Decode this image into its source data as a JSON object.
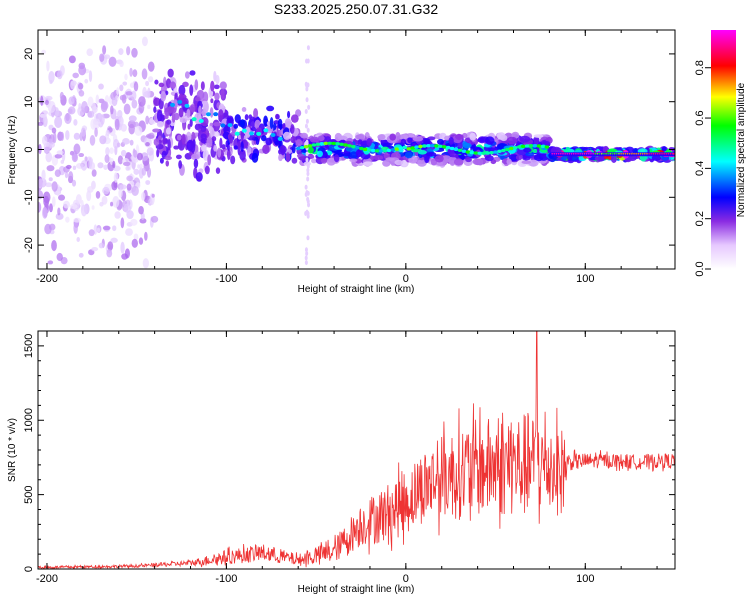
{
  "chart_data": [
    {
      "type": "heatmap",
      "title": "S233.2025.250.07.31.G32",
      "xlabel": "Height of straight line (km)",
      "ylabel": "Frequency (Hz)",
      "xlim": [
        -205,
        150
      ],
      "ylim": [
        -25,
        25
      ],
      "xticks": [
        -200,
        -100,
        0,
        100
      ],
      "yticks": [
        -20,
        -10,
        0,
        10,
        20
      ],
      "colorbar": {
        "label": "Normalized spectral amplitude",
        "range": [
          0.0,
          0.95
        ],
        "ticks": [
          0.0,
          0.2,
          0.4,
          0.6,
          0.8
        ],
        "colors": [
          "#ffffff",
          "#e6c8ff",
          "#8a2be2",
          "#4b00ff",
          "#0000ff",
          "#00ffff",
          "#00ff00",
          "#ffff00",
          "#ff0000",
          "#ff00ff"
        ]
      },
      "ridge": {
        "description_segments": [
          {
            "x": [
              -205,
              -140
            ],
            "freq_center": 0,
            "spread": 25,
            "amplitude": 0.12
          },
          {
            "x": [
              -140,
              -100
            ],
            "freq_center": 5,
            "spread": 12,
            "amplitude": 0.22
          },
          {
            "x": [
              -100,
              -60
            ],
            "freq_center": 3,
            "spread": 6,
            "amplitude": 0.3
          },
          {
            "x": [
              -60,
              80
            ],
            "freq_center": 0,
            "spread": 3,
            "amplitude": 0.45
          },
          {
            "x": [
              80,
              150
            ],
            "freq_center": -1,
            "spread": 1,
            "amplitude": 0.9
          }
        ]
      }
    },
    {
      "type": "line",
      "xlabel": "Height of straight line (km)",
      "ylabel": "SNR (10 * v/v)",
      "xlim": [
        -205,
        150
      ],
      "ylim": [
        0,
        1600
      ],
      "xticks": [
        -200,
        -100,
        0,
        100
      ],
      "yticks": [
        0,
        500,
        1000,
        1500
      ],
      "series": [
        {
          "name": "SNR",
          "color": "#ee3333",
          "envelope_x": [
            -205,
            -150,
            -120,
            -100,
            -80,
            -60,
            -40,
            -25,
            -10,
            0,
            10,
            20,
            30,
            40,
            50,
            60,
            70,
            80,
            88,
            90,
            110,
            130,
            150
          ],
          "envelope_mean": [
            10,
            20,
            40,
            80,
            110,
            60,
            120,
            300,
            380,
            450,
            560,
            620,
            650,
            680,
            690,
            700,
            700,
            690,
            650,
            720,
            730,
            720,
            730
          ],
          "envelope_noise": [
            8,
            10,
            20,
            50,
            60,
            40,
            80,
            150,
            200,
            220,
            250,
            280,
            320,
            330,
            340,
            350,
            360,
            320,
            300,
            60,
            50,
            50,
            50
          ],
          "peak": {
            "x": 73,
            "y": 1600
          }
        }
      ]
    }
  ]
}
